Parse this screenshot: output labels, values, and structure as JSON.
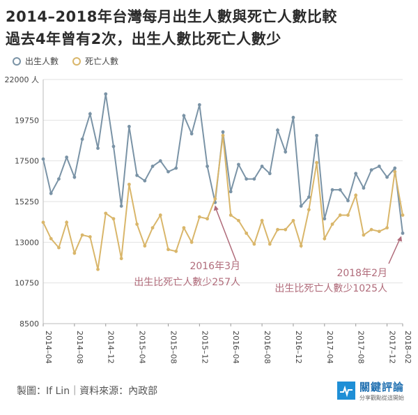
{
  "chart_data": {
    "type": "line",
    "title": "2014–2018年台灣每月出生人數與死亡人數比較",
    "subtitle": "過去4年曾有2次，出生人數比死亡人數少",
    "ylabel_unit": "人",
    "ylim": [
      8500,
      22000
    ],
    "yticks": [
      22000,
      19750,
      17500,
      15250,
      13000,
      10750,
      8500
    ],
    "x_tick_labels": [
      "2014–04",
      "2014–08",
      "2014–12",
      "2015–04",
      "2015–08",
      "2015–12",
      "2016–04",
      "2016–08",
      "2016–12",
      "2017–04",
      "2017–08",
      "2017–12",
      "2018–02"
    ],
    "x_tick_index": [
      0,
      4,
      8,
      12,
      16,
      20,
      24,
      28,
      32,
      36,
      40,
      44,
      46
    ],
    "series": [
      {
        "name": "出生人數",
        "color": "#7a93a6",
        "values": [
          17600,
          15700,
          16500,
          17700,
          16600,
          18700,
          20100,
          18200,
          21200,
          18300,
          15000,
          19400,
          16700,
          16400,
          17200,
          17500,
          16900,
          17100,
          20000,
          19000,
          20600,
          17200,
          15200,
          19100,
          15800,
          17300,
          16500,
          16500,
          17200,
          16800,
          19200,
          18000,
          19900,
          15000,
          15500,
          18900,
          14300,
          15900,
          15900,
          15300,
          16800,
          16000,
          17000,
          17200,
          16600,
          17100,
          13500
        ]
      },
      {
        "name": "死亡人數",
        "color": "#d9b66a",
        "values": [
          14100,
          13200,
          12700,
          14100,
          12400,
          13400,
          13300,
          11500,
          14600,
          14300,
          12100,
          16200,
          14000,
          12800,
          13800,
          14500,
          12600,
          12500,
          13800,
          13000,
          14400,
          14300,
          15400,
          18900,
          14500,
          14200,
          13500,
          12900,
          14200,
          12900,
          13700,
          13700,
          14200,
          12800,
          14800,
          17400,
          13200,
          14000,
          14500,
          14500,
          15600,
          13400,
          13700,
          13600,
          13800,
          16900,
          14500
        ]
      }
    ],
    "annotations": [
      {
        "label": "2016年3月",
        "detail": "出生比死亡人數少257人",
        "color": "#b06b7a",
        "index": 22
      },
      {
        "label": "2018年2月",
        "detail": "出生比死亡人數少1025人",
        "color": "#b06b7a",
        "index": 46
      }
    ]
  },
  "footer": {
    "credit": "製圖：If Lin｜資料來源：內政部"
  },
  "brand": {
    "name": "關鍵評論",
    "slogan": "分享觀點從這開始"
  }
}
